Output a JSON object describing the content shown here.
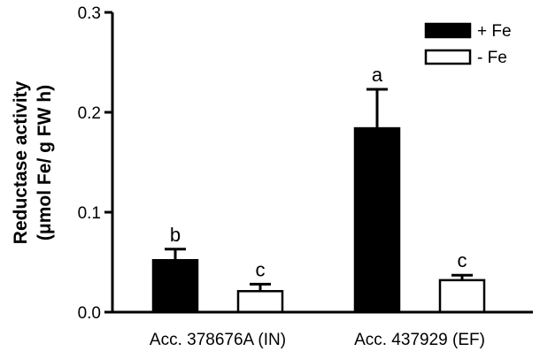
{
  "chart_data": {
    "type": "bar",
    "title": "",
    "xlabel": "",
    "ylabel_line1": "Reductase activity",
    "ylabel_line2": "(μmol Fe/ g FW h)",
    "ylim": [
      0,
      0.3
    ],
    "yticks": [
      0.0,
      0.1,
      0.2,
      0.3
    ],
    "ytick_labels": [
      "0.0",
      "0.1",
      "0.2",
      "0.3"
    ],
    "categories": [
      "Acc. 378676A (IN)",
      "Acc. 437929 (EF)"
    ],
    "legend_position": "top-right",
    "series": [
      {
        "name": "+ Fe",
        "color": "#000000",
        "fill": "solid",
        "values": [
          0.052,
          0.184
        ],
        "errors": [
          0.011,
          0.039
        ],
        "annotations": [
          "b",
          "a"
        ]
      },
      {
        "name": "- Fe",
        "color": "#000000",
        "fill": "hollow",
        "values": [
          0.021,
          0.032
        ],
        "errors": [
          0.007,
          0.005
        ],
        "annotations": [
          "c",
          "c"
        ]
      }
    ]
  }
}
